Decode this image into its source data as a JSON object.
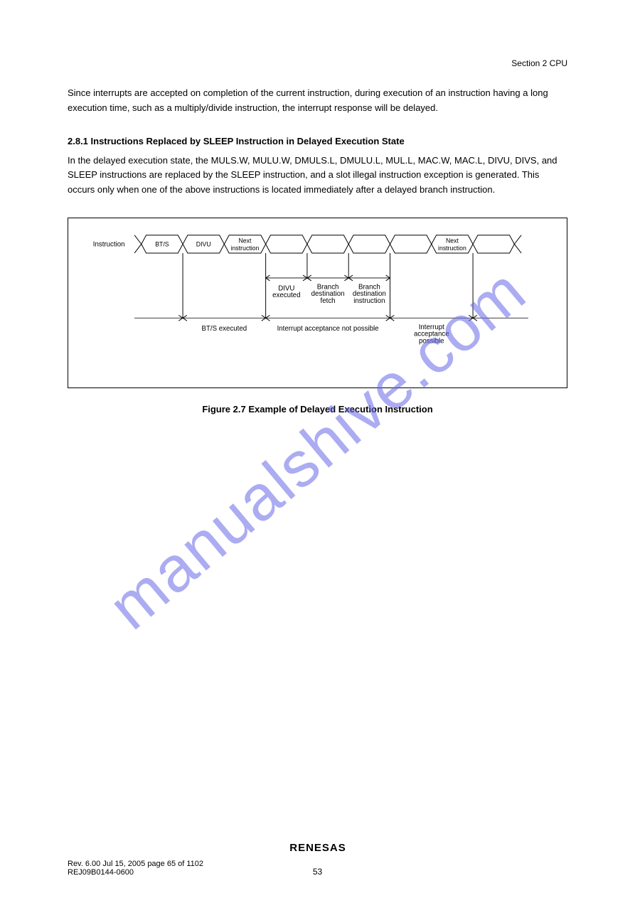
{
  "header": {
    "section_ref": "Section 2   CPU",
    "paragraph": "Since interrupts are accepted on completion of the current instruction, during execution of an instruction having a long execution time, such as a multiply/divide instruction, the interrupt response will be delayed.",
    "title": "2.8.1   Instructions Replaced by SLEEP Instruction in Delayed Execution State",
    "body": "In the delayed execution state, the MULS.W, MULU.W, DMULS.L, DMULU.L, MUL.L, MAC.W, MAC.L, DIVU, DIVS, and SLEEP instructions are replaced by the SLEEP instruction, and a slot illegal instruction exception is generated. This occurs only when one of the above instructions is located immediately after a delayed branch instruction."
  },
  "figure": {
    "signal_label": "Instruction",
    "slots": [
      "BT/S",
      "DIVU",
      "Next\ninstruction",
      "",
      "",
      "",
      "",
      "Next\ninstruction",
      ""
    ],
    "arrow_labels": {
      "divu_executed": "DIVU\nexecuted",
      "branch_destination_fetch": "Branch\ndestination\nfetch",
      "branch_destination_instruction": "Branch\ndestination\ninstruction",
      "bts_executed": "BT/S executed",
      "interrupt_acceptance_not_possible": "Interrupt acceptance not possible",
      "interrupt_acceptance_possible": "Interrupt\nacceptance\npossible"
    },
    "caption": "Figure 2.7   Example of Delayed Execution Instruction",
    "style": {
      "box_border": "#000000",
      "line_color": "#000000",
      "background": "#ffffff",
      "font_size_small": 10,
      "font_size_label": 11
    }
  },
  "watermark": {
    "text": "manualshive.com",
    "color": "#6969e8",
    "opacity": 0.55
  },
  "footer": {
    "logo_text": "RENESAS",
    "rev": "Rev. 6.00  Jul 15, 2005  page 65 of 1102",
    "rej": "REJ09B0144-0600",
    "page_num": "53"
  }
}
